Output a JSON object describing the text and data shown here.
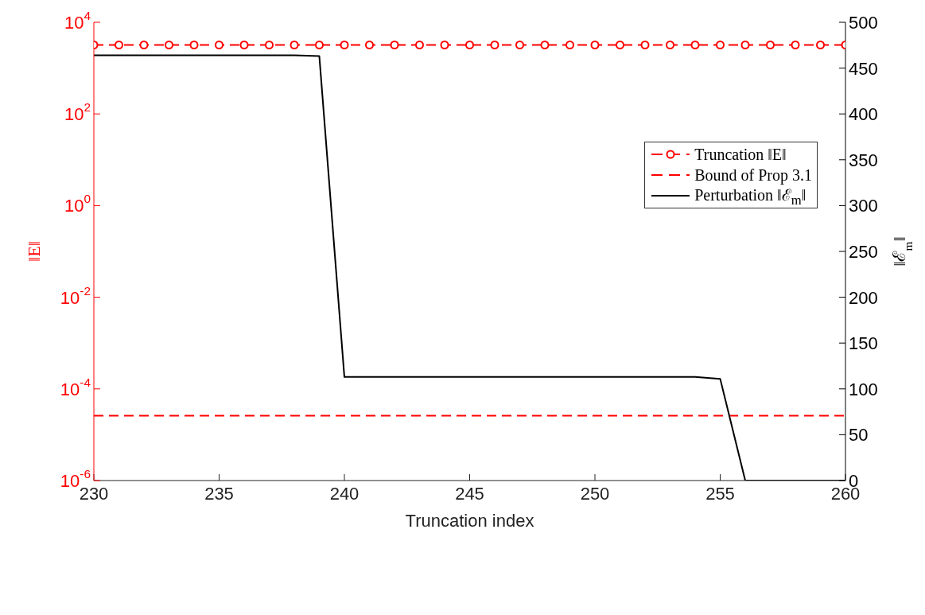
{
  "chart_data": {
    "type": "line",
    "xlabel": "Truncation index",
    "ylabel": "‖E‖",
    "y2label": "‖ℰ$_{m}$‖",
    "xlim": [
      230,
      260
    ],
    "xticks": [
      230,
      235,
      240,
      245,
      250,
      255,
      260
    ],
    "log": "y",
    "ylim": [
      1e-06,
      10000
    ],
    "yticks": [
      {
        "value": 1e-06,
        "label": "10$^{-6}$"
      },
      {
        "value": 0.0001,
        "label": "10$^{-4}$"
      },
      {
        "value": 0.01,
        "label": "10$^{-2}$"
      },
      {
        "value": 1,
        "label": "10$^{0}$"
      },
      {
        "value": 100,
        "label": "10$^{2}$"
      },
      {
        "value": 10000,
        "label": "10$^{4}$"
      }
    ],
    "y2lim": [
      0,
      500
    ],
    "y2ticks": [
      0,
      50,
      100,
      150,
      200,
      250,
      300,
      350,
      400,
      450,
      500
    ],
    "grid": false,
    "legend": "right",
    "series": [
      {
        "name": "Truncation ‖E‖",
        "color": "#ff0000",
        "axis": "y",
        "marker": "circle",
        "line_style": "dashed",
        "x": [
          230,
          231,
          232,
          233,
          234,
          235,
          236,
          237,
          238,
          239,
          240,
          241,
          242,
          243,
          244,
          245,
          246,
          247,
          248,
          249,
          250,
          251,
          252,
          253,
          254,
          255,
          256,
          257,
          258,
          259,
          260
        ],
        "values": [
          3200,
          3200,
          3200,
          3200,
          3200,
          3200,
          3200,
          3200,
          3200,
          3200,
          3200,
          3200,
          3200,
          3200,
          3200,
          3200,
          3200,
          3200,
          3200,
          3200,
          3200,
          3200,
          3200,
          3200,
          3200,
          3200,
          3200,
          3200,
          3200,
          3200,
          3200
        ]
      },
      {
        "name": "Bound of Prop 3.1",
        "color": "#ff0000",
        "axis": "y",
        "marker": "none",
        "line_style": "dashed",
        "x": [
          230,
          260
        ],
        "values": [
          2.6e-05,
          2.6e-05
        ]
      },
      {
        "name": "Perturbation ‖ℰ$_{m}$‖",
        "color": "#000000",
        "axis": "y2",
        "marker": "none",
        "line_style": "solid",
        "x": [
          230,
          231,
          232,
          233,
          234,
          235,
          236,
          237,
          238,
          239,
          240,
          241,
          242,
          243,
          244,
          245,
          246,
          247,
          248,
          249,
          250,
          251,
          252,
          253,
          254,
          255,
          256,
          257,
          258,
          259,
          260
        ],
        "values": [
          464,
          464,
          464,
          464,
          464,
          464,
          464,
          464,
          464,
          463,
          113,
          113,
          113,
          113,
          113,
          113,
          113,
          113,
          113,
          113,
          113,
          113,
          113,
          113,
          113,
          111,
          0,
          0,
          0,
          0,
          0
        ]
      }
    ]
  }
}
